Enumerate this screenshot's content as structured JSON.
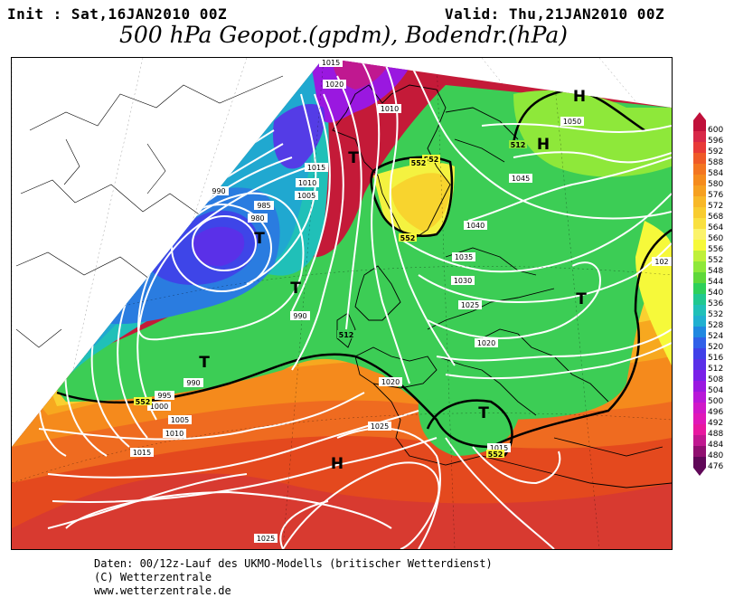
{
  "header": {
    "init_label": "Init : Sat,16JAN2010 00Z",
    "valid_label": "Valid: Thu,21JAN2010 00Z",
    "title": "500 hPa Geopot.(gpdm), Bodendr.(hPa)"
  },
  "footer": {
    "line1": "Daten: 00/12z-Lauf des UKMO-Modells (britischer Wetterdienst)",
    "line2": "(C) Wetterzentrale",
    "line3": "www.wetterzentrale.de"
  },
  "colorbar": {
    "levels": [
      "600",
      "596",
      "592",
      "588",
      "584",
      "580",
      "576",
      "572",
      "568",
      "564",
      "560",
      "556",
      "552",
      "548",
      "544",
      "540",
      "536",
      "532",
      "528",
      "524",
      "520",
      "516",
      "512",
      "508",
      "504",
      "500",
      "496",
      "492",
      "488",
      "484",
      "480",
      "476"
    ],
    "colors": [
      "#c0103a",
      "#d82848",
      "#e83a38",
      "#ef5a28",
      "#f37520",
      "#f58b1c",
      "#f6a020",
      "#f8b828",
      "#f8cc30",
      "#f9e040",
      "#fbf36a",
      "#f6f93a",
      "#bff03a",
      "#8ee83a",
      "#5fd83a",
      "#2ed05a",
      "#20c890",
      "#20c0b8",
      "#20b0d0",
      "#2088e0",
      "#3060e8",
      "#4040e8",
      "#5a30e8",
      "#7a20e8",
      "#9a18e0",
      "#b818d8",
      "#d018c8",
      "#e018b8",
      "#e818a0",
      "#c01890",
      "#901070",
      "#600858"
    ]
  },
  "map": {
    "pressure_labels": [
      {
        "text": "1015"
      },
      {
        "text": "1020"
      },
      {
        "text": "1010"
      },
      {
        "text": "1015"
      },
      {
        "text": "1010"
      },
      {
        "text": "1005"
      },
      {
        "text": "990"
      },
      {
        "text": "985"
      },
      {
        "text": "980"
      },
      {
        "text": "990"
      },
      {
        "text": "990"
      },
      {
        "text": "995"
      },
      {
        "text": "1000"
      },
      {
        "text": "1005"
      },
      {
        "text": "1010"
      },
      {
        "text": "1015"
      },
      {
        "text": "1020"
      },
      {
        "text": "1025"
      },
      {
        "text": "1025"
      },
      {
        "text": "1015"
      },
      {
        "text": "1020"
      },
      {
        "text": "1025"
      },
      {
        "text": "1030"
      },
      {
        "text": "1035"
      },
      {
        "text": "1040"
      },
      {
        "text": "1045"
      },
      {
        "text": "1050"
      },
      {
        "text": "102"
      }
    ],
    "geopot_labels": [
      {
        "text": "552"
      },
      {
        "text": "552"
      },
      {
        "text": "552"
      },
      {
        "text": "552"
      },
      {
        "text": "512"
      },
      {
        "text": "512"
      },
      {
        "text": "552"
      }
    ],
    "pressure_centers": [
      {
        "text": "T"
      },
      {
        "text": "T"
      },
      {
        "text": "T"
      },
      {
        "text": "T"
      },
      {
        "text": "T"
      },
      {
        "text": "T"
      },
      {
        "text": "H"
      },
      {
        "text": "H"
      },
      {
        "text": "H"
      }
    ]
  }
}
